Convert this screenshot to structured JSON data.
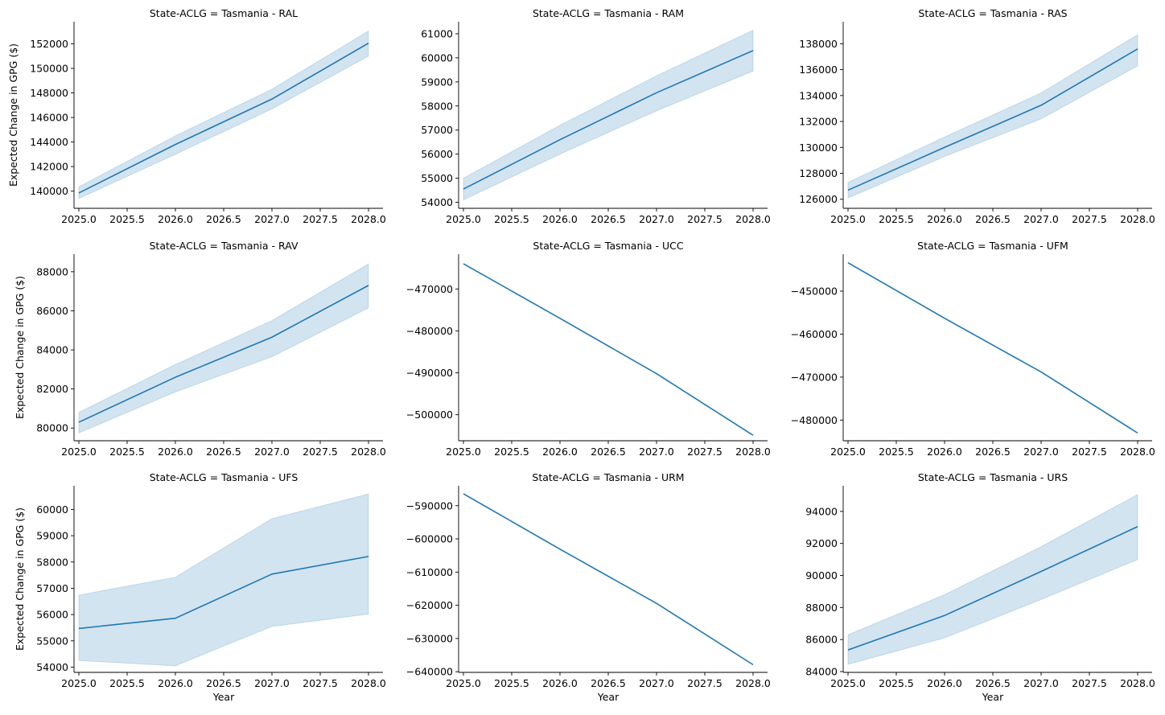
{
  "figure": {
    "ylabel": "Expected Change in GPG ($)",
    "xlabel": "Year"
  },
  "colors": {
    "line": "#1f77b4",
    "band": "#1f77b4"
  },
  "chart_data": [
    {
      "type": "line",
      "title": "State-ACLG = Tasmania - RAL",
      "x": [
        2025.0,
        2026.0,
        2027.0,
        2028.0
      ],
      "xticks": [
        2025.0,
        2025.5,
        2026.0,
        2026.5,
        2027.0,
        2027.5,
        2028.0
      ],
      "xlim": [
        2024.95,
        2028.15
      ],
      "ylim": [
        138600,
        153800
      ],
      "yticks": [
        140000,
        142000,
        144000,
        146000,
        148000,
        150000,
        152000
      ],
      "series": [
        {
          "values": [
            139850,
            143800,
            147500,
            152050
          ],
          "lower": [
            139400,
            143000,
            146700,
            151000
          ],
          "upper": [
            140350,
            144500,
            148300,
            153050
          ]
        }
      ]
    },
    {
      "type": "line",
      "title": "State-ACLG = Tasmania - RAM",
      "x": [
        2025.0,
        2026.0,
        2027.0,
        2028.0
      ],
      "xticks": [
        2025.0,
        2025.5,
        2026.0,
        2026.5,
        2027.0,
        2027.5,
        2028.0
      ],
      "xlim": [
        2024.95,
        2028.15
      ],
      "ylim": [
        53750,
        61500
      ],
      "yticks": [
        54000,
        55000,
        56000,
        57000,
        58000,
        59000,
        60000,
        61000
      ],
      "series": [
        {
          "values": [
            54550,
            56600,
            58550,
            60300
          ],
          "lower": [
            54100,
            56000,
            57800,
            59450
          ],
          "upper": [
            55000,
            57200,
            59250,
            61150
          ]
        }
      ]
    },
    {
      "type": "line",
      "title": "State-ACLG = Tasmania - RAS",
      "x": [
        2025.0,
        2026.0,
        2027.0,
        2028.0
      ],
      "xticks": [
        2025.0,
        2025.5,
        2026.0,
        2026.5,
        2027.0,
        2027.5,
        2028.0
      ],
      "xlim": [
        2024.95,
        2028.15
      ],
      "ylim": [
        125300,
        139700
      ],
      "yticks": [
        126000,
        128000,
        130000,
        132000,
        134000,
        136000,
        138000
      ],
      "series": [
        {
          "values": [
            126700,
            130000,
            133250,
            137600
          ],
          "lower": [
            126100,
            129300,
            132200,
            136300
          ],
          "upper": [
            127300,
            130800,
            134200,
            138700
          ]
        }
      ]
    },
    {
      "type": "line",
      "title": "State-ACLG = Tasmania - RAV",
      "x": [
        2025.0,
        2026.0,
        2027.0,
        2028.0
      ],
      "xticks": [
        2025.0,
        2025.5,
        2026.0,
        2026.5,
        2027.0,
        2027.5,
        2028.0
      ],
      "xlim": [
        2024.95,
        2028.15
      ],
      "ylim": [
        79350,
        88900
      ],
      "yticks": [
        80000,
        82000,
        84000,
        86000,
        88000
      ],
      "series": [
        {
          "values": [
            80300,
            82600,
            84650,
            87300
          ],
          "lower": [
            79750,
            81850,
            83650,
            86150
          ],
          "upper": [
            80800,
            83250,
            85500,
            88400
          ]
        }
      ]
    },
    {
      "type": "line",
      "title": "State-ACLG = Tasmania - UCC",
      "x": [
        2025.0,
        2026.0,
        2027.0,
        2028.0
      ],
      "xticks": [
        2025.0,
        2025.5,
        2026.0,
        2026.5,
        2027.0,
        2027.5,
        2028.0
      ],
      "xlim": [
        2024.95,
        2028.15
      ],
      "ylim": [
        -506200,
        -461700
      ],
      "yticks": [
        -470000,
        -480000,
        -490000,
        -500000
      ],
      "series": [
        {
          "values": [
            -464000,
            -477000,
            -490200,
            -504900
          ]
        }
      ]
    },
    {
      "type": "line",
      "title": "State-ACLG = Tasmania - UFM",
      "x": [
        2025.0,
        2026.0,
        2027.0,
        2028.0
      ],
      "xticks": [
        2025.0,
        2025.5,
        2026.0,
        2026.5,
        2027.0,
        2027.5,
        2028.0
      ],
      "xlim": [
        2024.95,
        2028.15
      ],
      "ylim": [
        -484800,
        -441400
      ],
      "yticks": [
        -450000,
        -460000,
        -470000,
        -480000
      ],
      "series": [
        {
          "values": [
            -443400,
            -456300,
            -468800,
            -483000
          ]
        }
      ]
    },
    {
      "type": "line",
      "title": "State-ACLG = Tasmania - UFS",
      "x": [
        2025.0,
        2026.0,
        2027.0,
        2028.0
      ],
      "xticks": [
        2025.0,
        2025.5,
        2026.0,
        2026.5,
        2027.0,
        2027.5,
        2028.0
      ],
      "xlim": [
        2024.95,
        2028.15
      ],
      "ylim": [
        53800,
        60900
      ],
      "yticks": [
        54000,
        55000,
        56000,
        57000,
        58000,
        59000,
        60000
      ],
      "series": [
        {
          "values": [
            55470,
            55860,
            57540,
            58210
          ],
          "lower": [
            54250,
            54050,
            55550,
            56020
          ],
          "upper": [
            56740,
            57420,
            59650,
            60590
          ]
        }
      ]
    },
    {
      "type": "line",
      "title": "State-ACLG = Tasmania - URM",
      "x": [
        2025.0,
        2026.0,
        2027.0,
        2028.0
      ],
      "xticks": [
        2025.0,
        2025.5,
        2026.0,
        2026.5,
        2027.0,
        2027.5,
        2028.0
      ],
      "xlim": [
        2024.95,
        2028.15
      ],
      "ylim": [
        -640200,
        -584000
      ],
      "yticks": [
        -590000,
        -600000,
        -610000,
        -620000,
        -630000,
        -640000
      ],
      "series": [
        {
          "values": [
            -586400,
            -603100,
            -619400,
            -637900
          ]
        }
      ]
    },
    {
      "type": "line",
      "title": "State-ACLG = Tasmania - URS",
      "x": [
        2025.0,
        2026.0,
        2027.0,
        2028.0
      ],
      "xticks": [
        2025.0,
        2025.5,
        2026.0,
        2026.5,
        2027.0,
        2027.5,
        2028.0
      ],
      "xlim": [
        2024.95,
        2028.15
      ],
      "ylim": [
        83950,
        95600
      ],
      "yticks": [
        84000,
        86000,
        88000,
        90000,
        92000,
        94000
      ],
      "series": [
        {
          "values": [
            85350,
            87500,
            90250,
            93050
          ],
          "lower": [
            84450,
            86100,
            88500,
            91000
          ],
          "upper": [
            86300,
            88800,
            91800,
            95050
          ]
        }
      ]
    }
  ]
}
